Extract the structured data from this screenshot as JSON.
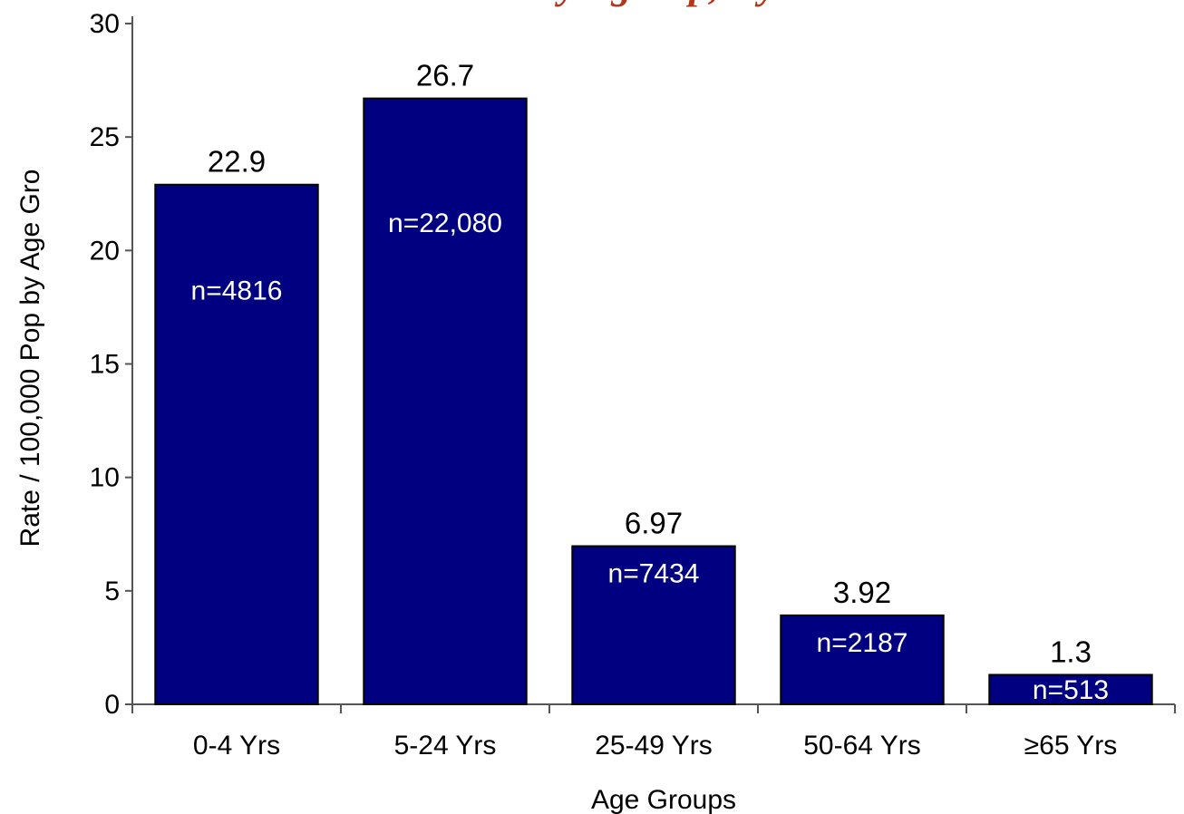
{
  "colors": {
    "bar_fill": "#000080",
    "bar_stroke": "#000000",
    "title": "#b3361b",
    "axis": "#555555",
    "value_label": "#000000",
    "count_label": "#ffffff"
  },
  "chart_data": {
    "type": "bar",
    "title": "...y Age ...p, ...y",
    "xlabel": "Age Groups",
    "ylabel": "Rate / 100,000 Pop by Age Gro",
    "categories": [
      "0-4 Yrs",
      "5-24 Yrs",
      "25-49 Yrs",
      "50-64 Yrs",
      "≥65  Yrs"
    ],
    "values": [
      22.9,
      26.7,
      6.97,
      3.92,
      1.3
    ],
    "value_labels": [
      "22.9",
      "26.7",
      "6.97",
      "3.92",
      "1.3"
    ],
    "count_labels": [
      "n=4816",
      "n=22,080",
      "n=7434",
      "n=2187",
      "n=513"
    ],
    "ylim": [
      0,
      30
    ],
    "yticks": [
      0,
      5,
      10,
      15,
      20,
      25,
      30
    ],
    "grid": false,
    "legend": "none"
  }
}
